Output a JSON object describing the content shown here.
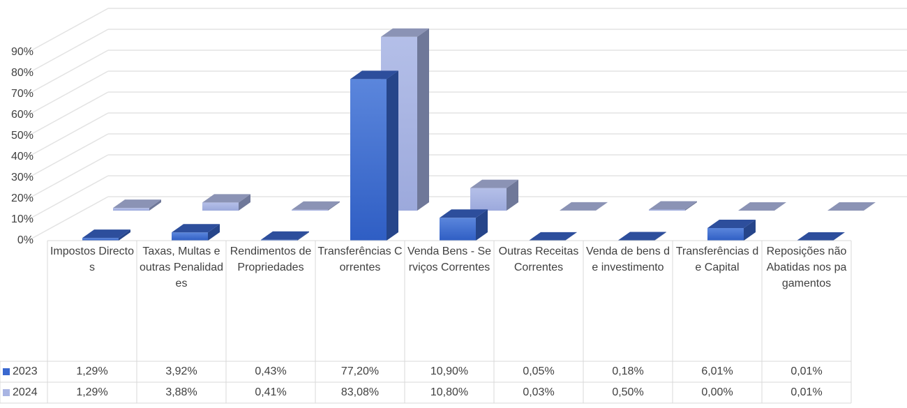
{
  "chart_data": {
    "type": "bar3d",
    "categories": [
      "Impostos Directos",
      "Taxas, Multas e outras Penalidades",
      "Rendimentos de Propriedades",
      "Transferências Correntes",
      "Venda Bens - Serviços Correntes",
      "Outras Receitas Correntes",
      "Venda de bens de investimento",
      "Transferências de Capital",
      "Reposições não Abatidas nos pagamentos"
    ],
    "series": [
      {
        "name": "2023",
        "color": "#3a68cf",
        "values": [
          1.29,
          3.92,
          0.43,
          77.2,
          10.9,
          0.05,
          0.18,
          6.01,
          0.01
        ],
        "value_labels": [
          "1,29%",
          "3,92%",
          "0,43%",
          "77,20%",
          "10,90%",
          "0,05%",
          "0,18%",
          "6,01%",
          "0,01%"
        ]
      },
      {
        "name": "2024",
        "color": "#a9b5e3",
        "values": [
          1.29,
          3.88,
          0.41,
          83.08,
          10.8,
          0.03,
          0.5,
          0.0,
          0.01
        ],
        "value_labels": [
          "1,29%",
          "3,88%",
          "0,41%",
          "83,08%",
          "10,80%",
          "0,03%",
          "0,50%",
          "0,00%",
          "0,01%"
        ]
      }
    ],
    "ylim": [
      0,
      90
    ],
    "yticks": [
      {
        "value": 0,
        "label": "0%"
      },
      {
        "value": 10,
        "label": "10%"
      },
      {
        "value": 20,
        "label": "20%"
      },
      {
        "value": 30,
        "label": "30%"
      },
      {
        "value": 40,
        "label": "40%"
      },
      {
        "value": 50,
        "label": "50%"
      },
      {
        "value": 60,
        "label": "60%"
      },
      {
        "value": 70,
        "label": "70%"
      },
      {
        "value": 80,
        "label": "80%"
      },
      {
        "value": 90,
        "label": "90%"
      }
    ],
    "grid": true,
    "data_table": true
  }
}
